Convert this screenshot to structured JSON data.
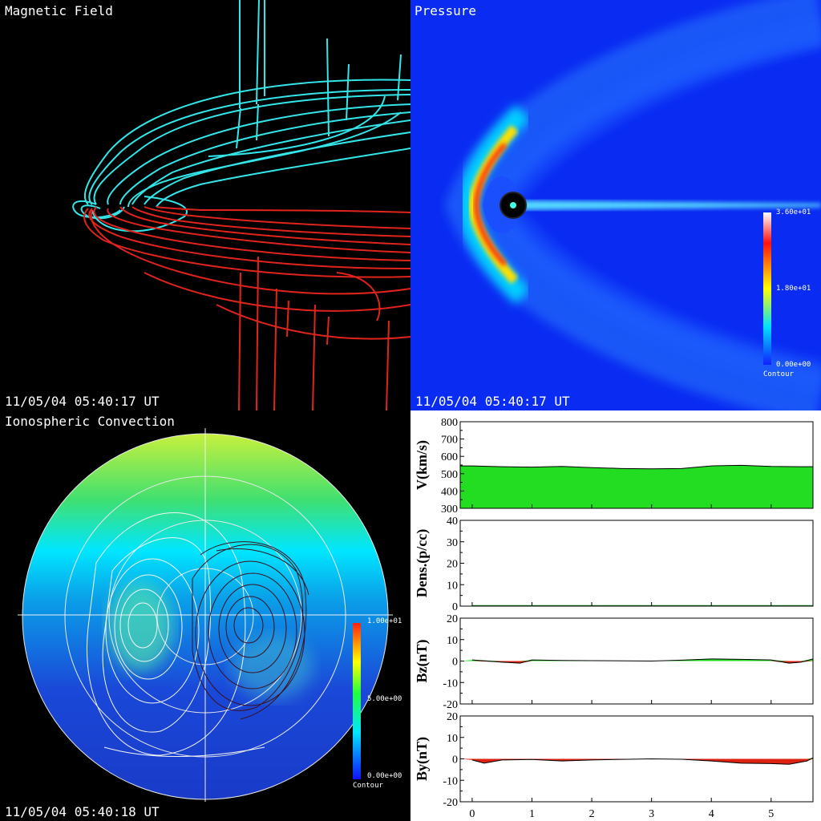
{
  "panels": {
    "magnetic": {
      "title": "Magnetic Field",
      "timestamp": "11/05/04 05:40:17 UT"
    },
    "pressure": {
      "title": "Pressure",
      "timestamp": "11/05/04 05:40:17 UT",
      "colorbar": {
        "max": "3.60e+01",
        "mid": "1.80e+01",
        "min": "0.00e+00",
        "label": "Contour"
      }
    },
    "ionosphere": {
      "title": "Ionospheric Convection",
      "timestamp": "11/05/04 05:40:18 UT",
      "colorbar": {
        "max": "1.00e+01",
        "mid": "5.00e+00",
        "min": "0.00e+00",
        "label": "Contour"
      }
    }
  },
  "colors": {
    "cyan_lines": "#33e6ea",
    "red_lines": "#e0241c",
    "fill_green": "#22dd22",
    "fill_red": "#dd2211"
  },
  "chart_data": [
    {
      "type": "area",
      "ylabel": "V(km/s)",
      "ylim": [
        300,
        800
      ],
      "yticks": [
        "800",
        "700",
        "600",
        "500",
        "400",
        "300"
      ],
      "x": [
        0,
        0.5,
        1,
        1.5,
        2,
        2.5,
        3,
        3.5,
        4,
        4.5,
        5,
        5.5
      ],
      "values": [
        545,
        540,
        538,
        542,
        535,
        530,
        528,
        530,
        545,
        548,
        542,
        540
      ]
    },
    {
      "type": "area",
      "ylabel": "Dens.(p/cc)",
      "ylim": [
        0,
        40
      ],
      "yticks": [
        "40",
        "30",
        "20",
        "10",
        "0"
      ],
      "x": [
        0,
        1,
        2,
        3,
        4,
        5,
        5.7
      ],
      "values": [
        0.3,
        0.3,
        0.3,
        0.3,
        0.3,
        0.3,
        0.3
      ]
    },
    {
      "type": "area",
      "ylabel": "Bz(nT)",
      "ylim": [
        -20,
        20
      ],
      "yticks": [
        "20",
        "10",
        "0",
        "-10",
        "-20"
      ],
      "x": [
        0,
        0.5,
        0.8,
        1,
        1.5,
        2,
        3,
        3.5,
        4,
        4.5,
        5,
        5.3,
        5.5,
        5.7
      ],
      "values": [
        0.5,
        -0.5,
        -1,
        0.5,
        0.3,
        0.2,
        0,
        0.4,
        1,
        0.8,
        0.5,
        -1,
        -0.5,
        1
      ]
    },
    {
      "type": "area",
      "ylabel": "By(nT)",
      "ylim": [
        -20,
        20
      ],
      "yticks": [
        "20",
        "10",
        "0",
        "-10",
        "-20"
      ],
      "x": [
        0,
        0.2,
        0.5,
        1,
        1.5,
        2,
        3,
        3.5,
        4,
        4.5,
        5,
        5.3,
        5.6,
        5.7
      ],
      "values": [
        -0.5,
        -2,
        -0.5,
        -0.3,
        -1,
        -0.5,
        0,
        -0.2,
        -1,
        -2,
        -2.2,
        -2.5,
        -1,
        0.5
      ]
    }
  ],
  "xaxis": {
    "ticks": [
      "0",
      "1",
      "2",
      "3",
      "4",
      "5"
    ],
    "xlim": [
      -0.2,
      5.7
    ]
  }
}
